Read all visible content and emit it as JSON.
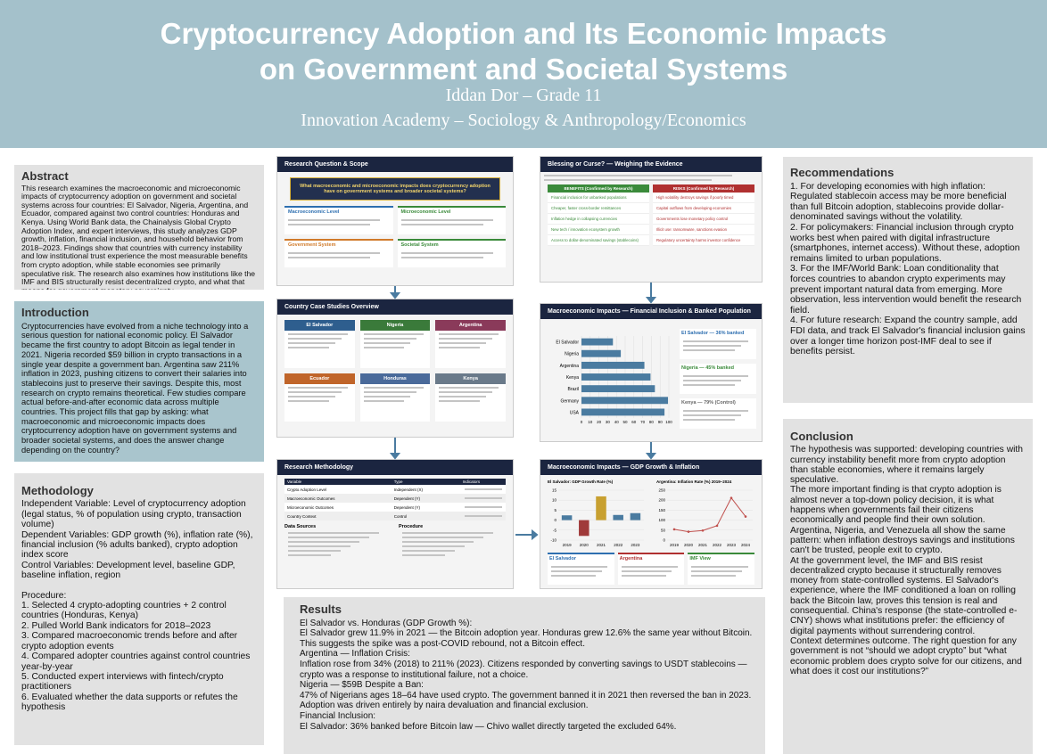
{
  "header": {
    "title": "Cryptocurrency Adoption and Its Economic Impacts on Government and Societal Systems",
    "author": "Iddan Dor – Grade 11",
    "affiliation": "Innovation Academy – Sociology & Anthropology/Economics"
  },
  "abstract": {
    "heading": "Abstract",
    "paragraphs": [
      "This research examines the macroeconomic and microeconomic impacts of cryptocurrency adoption on government and societal systems across four countries: El Salvador, Nigeria, Argentina, and Ecuador, compared against two control countries: Honduras and Kenya. Using World Bank data, the Chainalysis Global Crypto Adoption Index, and expert interviews, this study analyzes GDP growth, inflation, financial inclusion, and household behavior from 2018–2023. Findings show that countries with currency instability and low institutional trust experience the most measurable benefits from crypto adoption, while stable economies see primarily speculative risk. The research also examines how institutions like the IMF and BIS structurally resist decentralized crypto, and what that means for government monetary sovereignty."
    ]
  },
  "introduction": {
    "heading": "Introduction",
    "paragraphs": [
      "Cryptocurrencies have evolved from a niche technology into a serious question for national economic policy. El Salvador became the first country to adopt Bitcoin as legal tender in 2021. Nigeria recorded $59 billion in crypto transactions in a single year despite a government ban. Argentina saw 211% inflation in 2023, pushing citizens to convert their salaries into stablecoins just to preserve their savings. Despite this, most research on crypto remains theoretical. Few studies compare actual before-and-after economic data across multiple countries. This project fills that gap by asking: what macroeconomic and microeconomic impacts does cryptocurrency adoption have on government systems and broader societal systems, and does the answer change depending on the country?"
    ]
  },
  "methodology": {
    "heading": "Methodology",
    "paragraphs": [
      "Independent Variable: Level of cryptocurrency adoption (legal status, % of population using crypto, transaction volume)",
      "Dependent Variables: GDP growth (%), inflation rate (%), financial inclusion (% adults banked), crypto adoption index score",
      "Control Variables: Development level, baseline GDP, baseline inflation, region",
      "Procedure:",
      "1. Selected 4 crypto-adopting countries + 2 control countries (Honduras, Kenya)",
      "2. Pulled World Bank indicators for 2018–2023",
      "3. Compared macroeconomic trends before and after crypto adoption events",
      "4. Compared adopter countries against control countries year-by-year",
      "5. Conducted expert interviews with fintech/crypto practitioners",
      "6. Evaluated whether the data supports or refutes the hypothesis"
    ]
  },
  "results": {
    "heading": "Results",
    "paragraphs": [
      "El Salvador vs. Honduras (GDP Growth %):",
      "El Salvador grew 11.9% in 2021 — the Bitcoin adoption year. Honduras grew 12.6% the same year without Bitcoin. This suggests the spike was a post-COVID rebound, not a Bitcoin effect.",
      "Argentina — Inflation Crisis:",
      "Inflation rose from 34% (2018) to 211% (2023). Citizens responded by converting savings to USDT stablecoins — crypto was a response to institutional failure, not a choice.",
      "Nigeria — $59B Despite a Ban:",
      "47% of Nigerians ages 18–64 have used crypto. The government banned it in 2021 then reversed the ban in 2023. Adoption was driven entirely by naira devaluation and financial exclusion.",
      "Financial Inclusion:",
      "El Salvador: 36% banked before Bitcoin law — Chivo wallet directly targeted the excluded 64%."
    ]
  },
  "recommendations": {
    "heading": "Recommendations",
    "paragraphs": [
      "1. For developing economies with high inflation: Regulated stablecoin access may be more beneficial than full Bitcoin adoption, stablecoins provide dollar-denominated savings without the volatility.",
      "2. For policymakers: Financial inclusion through crypto works best when paired with digital infrastructure (smartphones, internet access). Without these, adoption remains limited to urban populations.",
      "3. For the IMF/World Bank: Loan conditionality that forces countries to abandon crypto experiments may prevent important natural data from emerging. More observation, less intervention would benefit the research field.",
      "4. For future research: Expand the country sample, add FDI data, and track El Salvador's financial inclusion gains over a longer time horizon post-IMF deal to see if benefits persist."
    ]
  },
  "conclusion": {
    "heading": "Conclusion",
    "paragraphs": [
      "The hypothesis was supported: developing countries with currency instability benefit more from crypto adoption than stable economies, where it remains largely speculative.",
      "The more important finding is that crypto adoption is almost never a top-down policy decision, it is what happens when governments fail their citizens economically and people find their own solution. Argentina, Nigeria, and Venezuela all show the same pattern: when inflation destroys savings and institutions can't be trusted, people exit to crypto.",
      "At the government level, the IMF and BIS resist decentralized crypto because it structurally removes money from state-controlled systems. El Salvador's experience, where the IMF conditioned a loan on rolling back the Bitcoin law, proves this tension is real and consequential. China's response (the state-controlled e-CNY) shows what institutions prefer: the efficiency of digital payments without surrendering control.",
      "Context determines outcome. The right question for any government is not “should we adopt crypto” but “what economic problem does crypto solve for our citizens, and what does it cost our institutions?”"
    ]
  },
  "panels": {
    "scope": {
      "title": "Research Question & Scope",
      "question": "What macroeconomic and microeconomic impacts does cryptocurrency adoption have on government systems and broader societal systems?",
      "cells": [
        "Macroeconomic Level",
        "Microeconomic Level",
        "Government System",
        "Societal System"
      ]
    },
    "countries": {
      "title": "Country Case Studies Overview",
      "names": [
        "El Salvador",
        "Nigeria",
        "Argentina",
        "Ecuador",
        "Honduras",
        "Kenya"
      ]
    },
    "methods": {
      "title": "Research Methodology",
      "table_header": [
        "Variable",
        "Type",
        "Indicators"
      ],
      "rows": [
        [
          "Crypto Adoption Level",
          "Independent (X)"
        ],
        [
          "Macroeconomic Outcomes",
          "Dependent (Y)"
        ],
        [
          "Microeconomic Outcomes",
          "Dependent (Y)"
        ],
        [
          "Country Context",
          "Control"
        ]
      ],
      "data_sources": "Data Sources",
      "procedure": "Procedure"
    },
    "evidence": {
      "title": "Blessing or Curse? — Weighing the Evidence",
      "benefits_heading": "BENEFITS (Confirmed by Research)",
      "risks_heading": "RISKS (Confirmed by Research)",
      "benefits": [
        "Financial inclusion for unbanked populations",
        "Cheaper, faster cross-border remittances",
        "Inflation hedge in collapsing currencies",
        "New tech / innovation ecosystem growth",
        "Access to dollar-denominated savings (stablecoins)"
      ],
      "risks": [
        "High volatility destroys savings if poorly timed",
        "Capital outflows from developing economies",
        "Governments lose monetary policy control",
        "Illicit use: ransomware, sanctions evasion",
        "Regulatory uncertainty harms investor confidence"
      ]
    },
    "inclusion": {
      "title": "Macroeconomic Impacts — Financial Inclusion & Banked Population",
      "categories": [
        "El Salvador",
        "Nigeria",
        "Argentina",
        "Kenya",
        "Brazil",
        "Germany",
        "USA"
      ],
      "values": [
        36,
        45,
        72,
        79,
        84,
        99,
        95
      ],
      "xlim": [
        0,
        100
      ],
      "xticks": [
        0,
        10,
        20,
        30,
        40,
        50,
        60,
        70,
        80,
        90,
        100
      ],
      "color": "#4a7ba0",
      "notes": [
        "El Salvador — 36% banked",
        "Nigeria — 45% banked",
        "Kenya — 79% (Control)"
      ]
    },
    "growth": {
      "title": "Macroeconomic Impacts — GDP Growth & Inflation",
      "gdp_title": "El Salvador: GDP Growth Rate (%)",
      "gdp_categories": [
        "2019",
        "2020",
        "2021",
        "2022",
        "2023"
      ],
      "gdp_values": [
        2.4,
        -7.9,
        11.9,
        2.6,
        3.5
      ],
      "gdp_colors": [
        "#4a7ba0",
        "#a03a3a",
        "#c8a030",
        "#4a7ba0",
        "#4a7ba0"
      ],
      "gdp_ylim": [
        -10,
        15
      ],
      "gdp_yticks": [
        -10,
        -5,
        0,
        5,
        10,
        15
      ],
      "inf_title": "Argentina: Inflation Rate (%) 2019–2024",
      "inf_categories": [
        "2019",
        "2020",
        "2021",
        "2022",
        "2023",
        "2024"
      ],
      "inf_values": [
        54,
        42,
        48,
        72,
        211,
        118
      ],
      "inf_color": "#c0504d",
      "inf_ylim": [
        0,
        250
      ],
      "inf_yticks": [
        0,
        50,
        100,
        150,
        200,
        250
      ],
      "cards": [
        "El Salvador",
        "Argentina",
        "IMF View"
      ]
    }
  }
}
